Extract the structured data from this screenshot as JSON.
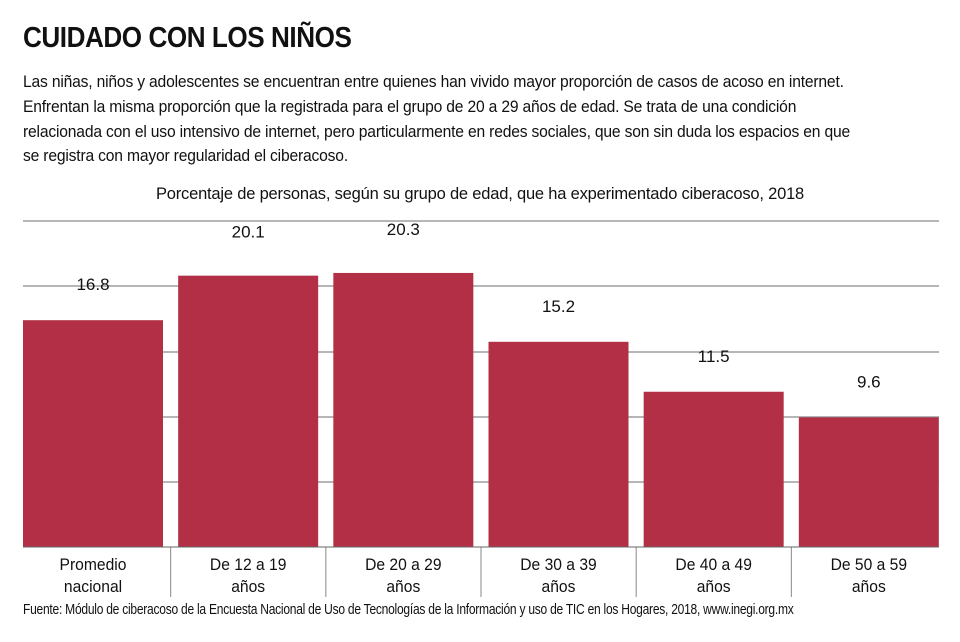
{
  "header": {
    "title": "CUIDADO CON LOS NIÑOS",
    "paragraph_lines": [
      "Las niñas, niños y adolescentes  se encuentran  entre  quienes  han  vivido mayor proporción de casos de acoso en internet.",
      "Enfrentan la misma  proporción  que la registrada  para el  grupo de 20 a 29 años de edad.  Se trata de  una condición",
      "relacionada  con el  uso intensivo de  internet,  pero particularmente  en redes sociales,  que  son sin duda los espacios  en que",
      "se registra con mayor regularidad  el ciberacoso."
    ]
  },
  "chart_data": {
    "type": "bar",
    "title": "Porcentaje de personas, según su grupo de edad, que ha experimentado ciberacoso, 2018",
    "categories": [
      [
        "Promedio",
        "nacional"
      ],
      [
        "De 12 a 19",
        "años"
      ],
      [
        "De 20 a 29",
        "años"
      ],
      [
        "De 30 a 39",
        "años"
      ],
      [
        "De 40 a 49",
        "años"
      ],
      [
        "De 50 a 59",
        "años"
      ]
    ],
    "values": [
      16.8,
      20.1,
      20.3,
      15.2,
      11.5,
      9.6
    ],
    "value_labels": [
      "16.8",
      "20.1",
      "20.3",
      "15.2",
      "11.5",
      "9.6"
    ],
    "xlabel": "",
    "ylabel": "",
    "y_axis_labels": false,
    "grid": true,
    "bar_color": "#b22f45",
    "grid_color": "#8a8a8a"
  },
  "footer": {
    "source": "Fuente: Módulo de ciberacoso de la Encuesta Nacional de Uso de Tecnologías de la Información y uso de TIC en los Hogares, 2018, www.inegi.org.mx"
  }
}
